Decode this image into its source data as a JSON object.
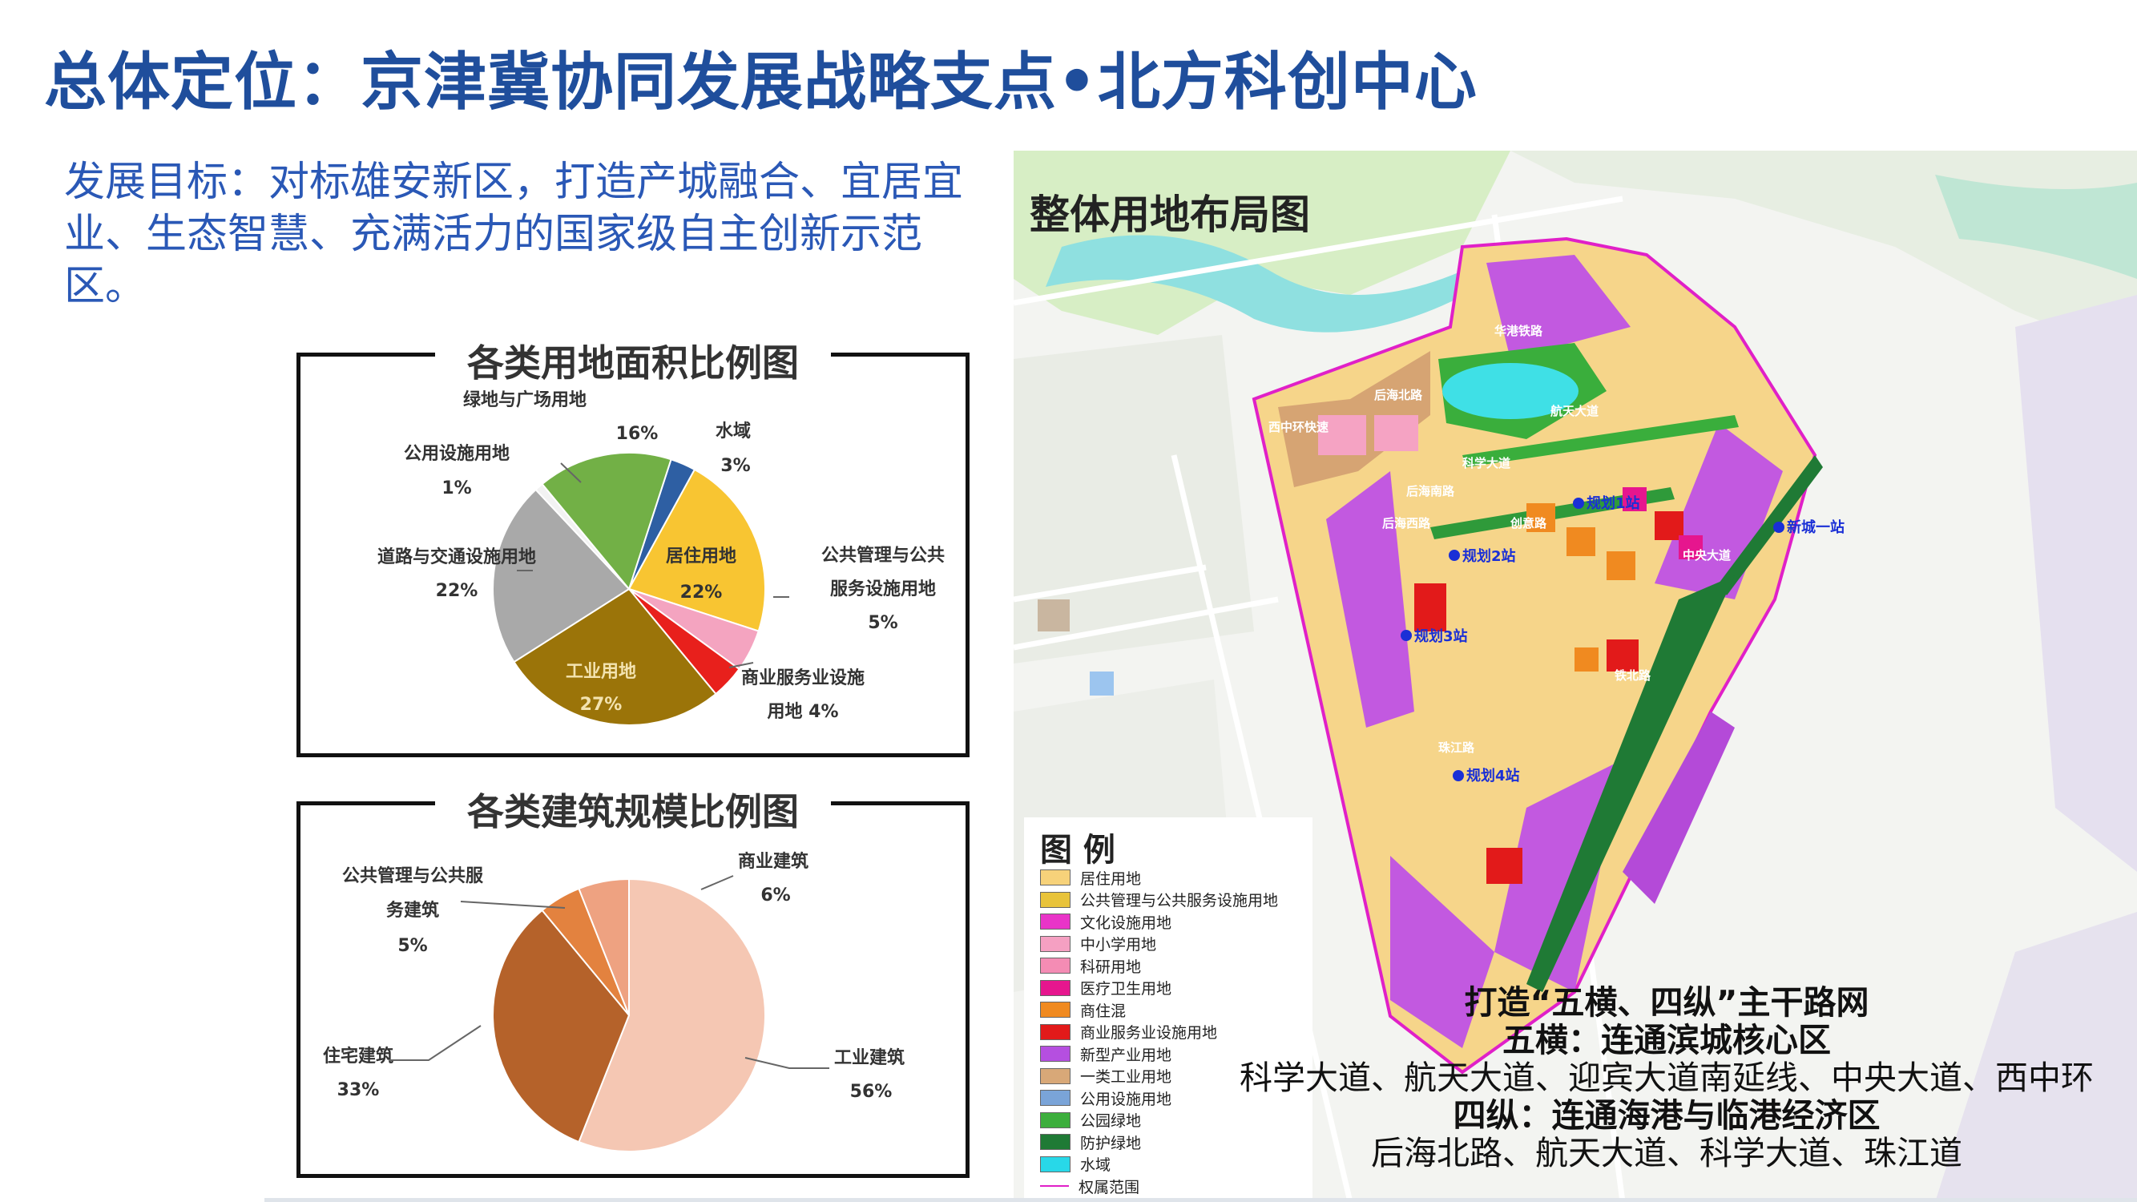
{
  "page": {
    "title": "总体定位：京津冀协同发展战略支点•北方科创中心",
    "goal": "发展目标：对标雄安新区，打造产城融合、宜居宜业、生态智慧、充满活力的国家级自主创新示范区。"
  },
  "chart_data": [
    {
      "type": "pie",
      "title": "各类用地面积比例图",
      "slices": [
        {
          "name": "水域",
          "value": 3,
          "label": "3%",
          "color": "#2e5fa3"
        },
        {
          "name": "居住用地",
          "value": 22,
          "label": "22%",
          "color": "#f8c532"
        },
        {
          "name": "公共管理与公共服务设施用地",
          "value": 5,
          "label": "5%",
          "color": "#f4a4c0"
        },
        {
          "name": "商业服务业设施用地",
          "value": 4,
          "label": "4%",
          "color": "#e8201c"
        },
        {
          "name": "工业用地",
          "value": 27,
          "label": "27%",
          "color": "#9b7409"
        },
        {
          "name": "道路与交通设施用地",
          "value": 22,
          "label": "22%",
          "color": "#a9a9a9"
        },
        {
          "name": "公用设施用地",
          "value": 1,
          "label": "1%",
          "color": "#f2f2f2"
        },
        {
          "name": "绿地与广场用地",
          "value": 16,
          "label": "16%",
          "color": "#72b046"
        }
      ]
    },
    {
      "type": "pie",
      "title": "各类建筑规模比例图",
      "slices": [
        {
          "name": "工业建筑",
          "value": 56,
          "label": "56%",
          "color": "#f5c7b3"
        },
        {
          "name": "住宅建筑",
          "value": 33,
          "label": "33%",
          "color": "#b5622a"
        },
        {
          "name": "公共管理与公共服务建筑",
          "value": 5,
          "label": "5%",
          "color": "#e3823f"
        },
        {
          "name": "商业建筑",
          "value": 6,
          "label": "6%",
          "color": "#eea281"
        }
      ]
    }
  ],
  "pie_labels": {
    "land": {
      "green_name": "绿地与广场用地",
      "green_pct": "16%",
      "water_name": "水域",
      "water_pct": "3%",
      "util_name": "公用设施用地",
      "util_pct": "1%",
      "road_name": "道路与交通设施用地",
      "road_pct": "22%",
      "res_name": "居住用地",
      "res_pct": "22%",
      "pub_name1": "公共管理与公共",
      "pub_name2": "服务设施用地",
      "pub_pct": "5%",
      "ind_name": "工业用地",
      "ind_pct": "27%",
      "com_name1": "商业服务业设施",
      "com_name2": "用地  4%"
    },
    "build": {
      "com_name": "商业建筑",
      "com_pct": "6%",
      "pub_name1": "公共管理与公共服",
      "pub_name2": "务建筑",
      "pub_pct": "5%",
      "res_name": "住宅建筑",
      "res_pct": "33%",
      "ind_name": "工业建筑",
      "ind_pct": "56%"
    }
  },
  "map": {
    "title": "整体用地布局图",
    "stations": [
      "规划1站",
      "规划2站",
      "规划3站",
      "规划4站",
      "新城一站"
    ],
    "road_labels": [
      "后海北路",
      "西中环快速",
      "科学大道",
      "航天大道",
      "创意路",
      "后海南路",
      "后海西路",
      "珠江路",
      "中央大道",
      "铁北路",
      "华港铁路"
    ],
    "legend_title": "图 例",
    "legend": [
      {
        "label": "居住用地",
        "color": "#f7d27a"
      },
      {
        "label": "公共管理与公共服务设施用地",
        "color": "#e8c33a"
      },
      {
        "label": "文化设施用地",
        "color": "#e934c8"
      },
      {
        "label": "中小学用地",
        "color": "#f5a0c2"
      },
      {
        "label": "科研用地",
        "color": "#f48cb4"
      },
      {
        "label": "医疗卫生用地",
        "color": "#e6168e"
      },
      {
        "label": "商住混",
        "color": "#f08a20"
      },
      {
        "label": "商业服务业设施用地",
        "color": "#e21a1a"
      },
      {
        "label": "新型产业用地",
        "color": "#b54fe0"
      },
      {
        "label": "一类工业用地",
        "color": "#d8a878"
      },
      {
        "label": "公用设施用地",
        "color": "#7aa4d8"
      },
      {
        "label": "公园绿地",
        "color": "#3cae3c"
      },
      {
        "label": "防护绿地",
        "color": "#1f7a35"
      },
      {
        "label": "水域",
        "color": "#28d8e8"
      },
      {
        "label": "权属范围",
        "color": "#e020c8"
      }
    ]
  },
  "roads": {
    "line1": "打造“五横、四纵”主干路网",
    "line2": "五横：连通滨城核心区",
    "line3": "科学大道、航天大道、迎宾大道南延线、中央大道、西中环",
    "line4": "四纵：连通海港与临港经济区",
    "line5": "后海北路、航天大道、科学大道、珠江道"
  }
}
